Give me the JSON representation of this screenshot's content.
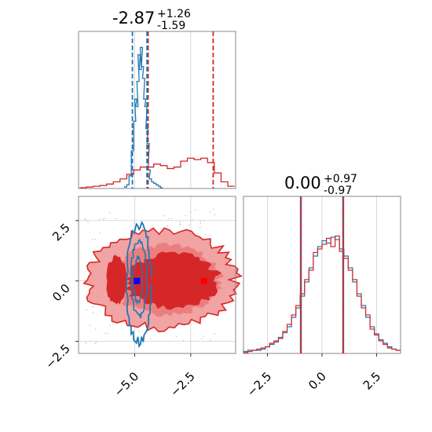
{
  "chart_data": {
    "type": "corner",
    "colors": {
      "blue": "#1f77b4",
      "red": "#d62728",
      "red_light": "#f2a3a3",
      "red_mid": "#e66565",
      "grid": "#d0d0d0"
    },
    "parameters": [
      {
        "title": {
          "median": "-2.87",
          "upper": "+1.26",
          "lower": "-1.59"
        },
        "range": [
          -7.5,
          -0.5
        ]
      },
      {
        "title": {
          "median": "0.00",
          "upper": "+0.97",
          "lower": "-0.97"
        },
        "range": [
          -3.6,
          3.6
        ]
      }
    ],
    "param1_marginal": {
      "xlim": [
        -7.5,
        -0.5
      ],
      "bins": [
        -7.3,
        -7.0,
        -6.7,
        -6.4,
        -6.1,
        -5.8,
        -5.5,
        -5.2,
        -4.9,
        -4.6,
        -4.3,
        -4.0,
        -3.7,
        -3.4,
        -3.1,
        -2.8,
        -2.5,
        -2.2,
        -1.9,
        -1.6,
        -1.3,
        -1.0,
        -0.7
      ],
      "series": [
        {
          "name": "",
          "color": "#1f77b4",
          "x": [
            -5.4,
            -5.3,
            -5.2,
            -5.1,
            -5.0,
            -4.95,
            -4.9,
            -4.85,
            -4.8,
            -4.75,
            -4.7,
            -4.65,
            -4.6,
            -4.55,
            -4.5,
            -4.45,
            -4.4,
            -4.35,
            -4.3,
            -4.2,
            -4.1,
            -4.0,
            -3.9,
            -3.8
          ],
          "values": [
            0.005,
            0.02,
            0.08,
            0.25,
            0.45,
            0.6,
            0.55,
            0.72,
            0.9,
            0.8,
            0.95,
            0.82,
            0.74,
            0.6,
            0.55,
            0.4,
            0.3,
            0.12,
            0.06,
            0.04,
            0.03,
            0.02,
            0.01,
            0.0
          ]
        },
        {
          "name": "",
          "color": "#d62728",
          "x": [
            -7.3,
            -7.0,
            -6.7,
            -6.4,
            -6.1,
            -5.8,
            -5.5,
            -5.2,
            -4.9,
            -4.6,
            -4.3,
            -4.0,
            -3.7,
            -3.4,
            -3.1,
            -2.8,
            -2.5,
            -2.2,
            -1.9,
            -1.6,
            -1.3,
            -1.0,
            -0.7
          ],
          "values": [
            0.0,
            0.005,
            0.01,
            0.015,
            0.025,
            0.04,
            0.06,
            0.09,
            0.12,
            0.14,
            0.14,
            0.16,
            0.15,
            0.13,
            0.14,
            0.18,
            0.2,
            0.19,
            0.2,
            0.17,
            0.1,
            0.04,
            0.01
          ]
        }
      ],
      "quantile_lines": [
        {
          "x": -5.1,
          "color": "#1f77b4"
        },
        {
          "x": -4.4,
          "color": "#d62728"
        },
        {
          "x": -4.45,
          "color": "#1f77b4"
        },
        {
          "x": -1.5,
          "color": "#d62728"
        }
      ]
    },
    "joint": {
      "xlim": [
        -7.5,
        -0.5
      ],
      "ylim": [
        -3.0,
        3.5
      ],
      "medians": [
        {
          "x": -4.9,
          "y": 0.0,
          "color": "#0000ff"
        },
        {
          "x": -4.2,
          "y": 0.0,
          "color": "#d62728"
        },
        {
          "x": -1.9,
          "y": 0.0,
          "color": "#ff0000"
        }
      ]
    },
    "param2_marginal": {
      "xlim": [
        -3.6,
        3.6
      ],
      "bin_width": 0.2,
      "series": [
        {
          "name": "",
          "color": "#1f77b4",
          "values": [
            0.01,
            0.01,
            0.02,
            0.02,
            0.03,
            0.05,
            0.07,
            0.09,
            0.13,
            0.17,
            0.22,
            0.3,
            0.38,
            0.48,
            0.6,
            0.72,
            0.82,
            0.9,
            0.95,
            0.93,
            0.98,
            0.96,
            0.88,
            0.82,
            0.72,
            0.6,
            0.5,
            0.4,
            0.3,
            0.22,
            0.16,
            0.11,
            0.08,
            0.05,
            0.03,
            0.02
          ]
        },
        {
          "name": "",
          "color": "#d62728",
          "values": [
            0.0,
            0.02,
            0.02,
            0.03,
            0.04,
            0.05,
            0.08,
            0.1,
            0.12,
            0.18,
            0.24,
            0.32,
            0.4,
            0.5,
            0.62,
            0.7,
            0.85,
            0.88,
            0.92,
            0.97,
            0.9,
            0.99,
            0.86,
            0.8,
            0.7,
            0.62,
            0.48,
            0.38,
            0.32,
            0.2,
            0.15,
            0.1,
            0.07,
            0.04,
            0.03,
            0.02
          ]
        }
      ],
      "quantile_lines": [
        -0.97,
        0.97
      ]
    },
    "ticks": {
      "param1": [
        -5.0,
        -2.5
      ],
      "param1_labels": [
        "−5.0",
        "−2.5"
      ],
      "param2": [
        -2.5,
        0.0,
        2.5
      ],
      "param2_labels": [
        "−2.5",
        "0.0",
        "2.5"
      ]
    }
  }
}
